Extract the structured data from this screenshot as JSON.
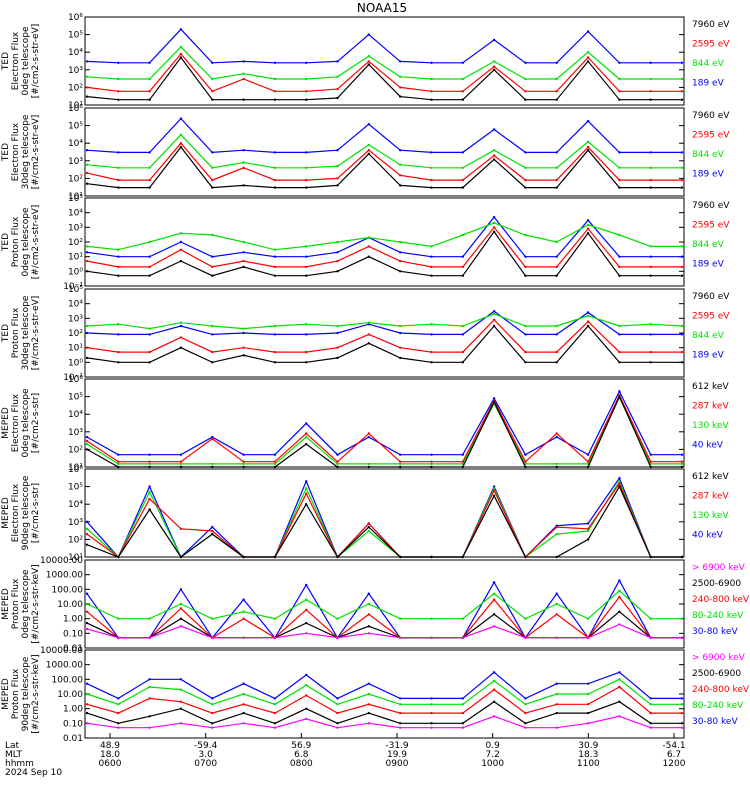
{
  "figure": {
    "title": "NOAA15",
    "date_label": "2024 Sep 10",
    "coord_rows": [
      {
        "label": "Lat",
        "values": [
          "48.9",
          "-59.4",
          "56.9",
          "-31.9",
          "0.9",
          "30.9",
          "-54.1"
        ]
      },
      {
        "label": "MLT",
        "values": [
          "18.0",
          "3.0",
          "6.8",
          "19.9",
          "7.2",
          "18.3",
          "6.7"
        ]
      },
      {
        "label": "hhmm",
        "values": [
          "0600",
          "0700",
          "0800",
          "0900",
          "1000",
          "1100",
          "1200"
        ]
      }
    ]
  },
  "colors": {
    "black": "#000000",
    "blue": "#0000ff",
    "red": "#ff0000",
    "green": "#00e000",
    "magenta": "#ff00ff"
  },
  "chart_data": [
    {
      "type": "line",
      "ylabel": "TED\nElectron Flux\n0deg telescope\n[#/cm2-s-str-eV]",
      "scale": "log",
      "ylim": [
        10,
        1000000
      ],
      "tick_labels": [
        "10¹",
        "10²",
        "10³",
        "10⁴",
        "10⁵",
        "10⁶"
      ],
      "series": [
        {
          "name": "7960 eV",
          "color": "black",
          "values": [
            30,
            20,
            20,
            5000,
            20,
            20,
            20,
            20,
            25,
            2000,
            30,
            20,
            20,
            1000,
            20,
            20,
            3000,
            20,
            20,
            20
          ]
        },
        {
          "name": "2595 eV",
          "color": "red",
          "values": [
            100,
            60,
            60,
            8000,
            60,
            300,
            60,
            60,
            80,
            3000,
            100,
            60,
            60,
            1500,
            60,
            60,
            5000,
            60,
            60,
            60
          ]
        },
        {
          "name": "844 eV",
          "color": "green",
          "values": [
            400,
            300,
            300,
            20000,
            300,
            600,
            300,
            300,
            400,
            6000,
            400,
            300,
            300,
            3000,
            300,
            300,
            10000,
            300,
            300,
            300
          ]
        },
        {
          "name": "189 eV",
          "color": "blue",
          "values": [
            3000,
            2500,
            2500,
            200000,
            2500,
            3000,
            2500,
            2500,
            3000,
            100000,
            3000,
            2500,
            2500,
            50000,
            2500,
            2500,
            150000,
            2500,
            2500,
            2500
          ]
        }
      ]
    },
    {
      "type": "line",
      "ylabel": "TED\nElectron Flux\n30deg telescope\n[#/cm2-s-str-eV]",
      "scale": "log",
      "ylim": [
        10,
        1000000
      ],
      "tick_labels": [
        "10¹",
        "10²",
        "10³",
        "10⁴",
        "10⁵",
        "10⁶"
      ],
      "series": [
        {
          "name": "7960 eV",
          "color": "black",
          "values": [
            50,
            30,
            30,
            6000,
            30,
            40,
            30,
            30,
            40,
            2500,
            40,
            30,
            30,
            1200,
            30,
            30,
            4000,
            30,
            30,
            30
          ]
        },
        {
          "name": "2595 eV",
          "color": "red",
          "values": [
            200,
            80,
            80,
            10000,
            80,
            400,
            80,
            80,
            100,
            4000,
            150,
            80,
            80,
            2000,
            80,
            80,
            6000,
            80,
            80,
            80
          ]
        },
        {
          "name": "844 eV",
          "color": "green",
          "values": [
            600,
            400,
            400,
            30000,
            400,
            800,
            400,
            400,
            500,
            8000,
            600,
            400,
            400,
            4000,
            400,
            400,
            12000,
            400,
            400,
            400
          ]
        },
        {
          "name": "189 eV",
          "color": "blue",
          "values": [
            4000,
            3000,
            3000,
            250000,
            3000,
            4000,
            3000,
            3000,
            4000,
            120000,
            4000,
            3000,
            3000,
            60000,
            3000,
            3000,
            180000,
            3000,
            3000,
            3000
          ]
        }
      ]
    },
    {
      "type": "line",
      "ylabel": "TED\nProton Flux\n0deg telescope\n[#/cm2-s-str-eV]",
      "scale": "log",
      "ylim": [
        0.1,
        100000
      ],
      "tick_labels": [
        "10⁻¹",
        "10⁰",
        "10¹",
        "10²",
        "10³",
        "10⁴",
        "10⁵"
      ],
      "series": [
        {
          "name": "7960 eV",
          "color": "black",
          "values": [
            1,
            0.5,
            0.5,
            5,
            0.5,
            2,
            0.5,
            0.5,
            1,
            10,
            1,
            0.5,
            0.5,
            500,
            0.5,
            0.5,
            400,
            0.5,
            0.5,
            0.5
          ]
        },
        {
          "name": "2595 eV",
          "color": "red",
          "values": [
            5,
            2,
            2,
            30,
            2,
            5,
            2,
            2,
            5,
            50,
            5,
            2,
            2,
            1000,
            2,
            2,
            800,
            2,
            2,
            2
          ]
        },
        {
          "name": "844 eV",
          "color": "green",
          "values": [
            50,
            30,
            100,
            400,
            300,
            100,
            30,
            50,
            100,
            200,
            100,
            50,
            300,
            2000,
            300,
            100,
            1500,
            300,
            50,
            50
          ]
        },
        {
          "name": "189 eV",
          "color": "blue",
          "values": [
            20,
            10,
            10,
            100,
            10,
            20,
            10,
            10,
            20,
            200,
            20,
            10,
            10,
            5000,
            10,
            10,
            3000,
            10,
            10,
            10
          ]
        }
      ]
    },
    {
      "type": "line",
      "ylabel": "TED\nProton Flux\n30deg telescope\n[#/cm2-s-str-eV]",
      "scale": "log",
      "ylim": [
        0.1,
        100000
      ],
      "tick_labels": [
        "10⁻¹",
        "10⁰",
        "10¹",
        "10²",
        "10³",
        "10⁴",
        "10⁵"
      ],
      "series": [
        {
          "name": "7960 eV",
          "color": "black",
          "values": [
            2,
            1,
            1,
            10,
            1,
            3,
            1,
            1,
            2,
            20,
            2,
            1,
            1,
            300,
            1,
            1,
            300,
            1,
            1,
            1
          ]
        },
        {
          "name": "2595 eV",
          "color": "red",
          "values": [
            10,
            5,
            5,
            50,
            5,
            10,
            5,
            5,
            10,
            80,
            10,
            5,
            5,
            800,
            5,
            5,
            600,
            5,
            5,
            5
          ]
        },
        {
          "name": "844 eV",
          "color": "green",
          "values": [
            300,
            400,
            200,
            500,
            300,
            200,
            300,
            400,
            300,
            500,
            300,
            400,
            300,
            2000,
            300,
            300,
            1500,
            300,
            400,
            300
          ]
        },
        {
          "name": "189 eV",
          "color": "blue",
          "values": [
            100,
            80,
            80,
            300,
            80,
            100,
            80,
            80,
            100,
            400,
            100,
            80,
            80,
            3000,
            80,
            80,
            2500,
            80,
            80,
            80
          ]
        }
      ]
    },
    {
      "type": "line",
      "ylabel": "MEPED\nElectron Flux\n0deg telescope\n[#/cm2-s-str]",
      "scale": "log",
      "ylim": [
        10,
        1000000
      ],
      "tick_labels": [
        "10¹",
        "10²",
        "10³",
        "10⁴",
        "10⁵",
        "10⁶"
      ],
      "series": [
        {
          "name": "612 keV",
          "color": "black",
          "values": [
            100,
            10,
            10,
            10,
            10,
            10,
            10,
            200,
            10,
            10,
            10,
            10,
            10,
            50000,
            10,
            10,
            10,
            100000,
            10,
            10
          ]
        },
        {
          "name": "287 keV",
          "color": "red",
          "values": [
            300,
            20,
            20,
            20,
            400,
            20,
            20,
            800,
            20,
            800,
            20,
            20,
            20,
            60000,
            20,
            800,
            20,
            120000,
            20,
            20
          ]
        },
        {
          "name": "130 keV",
          "color": "green",
          "values": [
            200,
            15,
            15,
            15,
            15,
            15,
            15,
            500,
            15,
            15,
            15,
            15,
            15,
            40000,
            15,
            15,
            15,
            90000,
            15,
            15
          ]
        },
        {
          "name": "40 keV",
          "color": "blue",
          "values": [
            500,
            50,
            50,
            50,
            500,
            50,
            50,
            3000,
            50,
            500,
            50,
            50,
            50,
            80000,
            50,
            500,
            50,
            200000,
            50,
            50
          ]
        }
      ]
    },
    {
      "type": "line",
      "ylabel": "MEPED\nElectron Flux\n90deg telescope\n[#/cm2-s-str]",
      "scale": "log",
      "ylim": [
        10,
        1000000
      ],
      "tick_labels": [
        "10¹",
        "10²",
        "10³",
        "10⁴",
        "10⁵",
        "10⁶"
      ],
      "series": [
        {
          "name": "612 keV",
          "color": "black",
          "values": [
            50,
            10,
            5000,
            10,
            200,
            10,
            10,
            10000,
            10,
            500,
            10,
            10,
            10,
            30000,
            10,
            10,
            100,
            100000,
            10,
            10
          ]
        },
        {
          "name": "287 keV",
          "color": "red",
          "values": [
            200,
            10,
            20000,
            400,
            300,
            10,
            10,
            40000,
            10,
            800,
            10,
            10,
            10,
            60000,
            10,
            500,
            400,
            150000,
            10,
            10
          ]
        },
        {
          "name": "130 keV",
          "color": "green",
          "values": [
            400,
            10,
            50000,
            10,
            200,
            10,
            10,
            80000,
            10,
            300,
            10,
            10,
            10,
            80000,
            10,
            200,
            300,
            200000,
            10,
            10
          ]
        },
        {
          "name": "40 keV",
          "color": "blue",
          "values": [
            1000,
            10,
            100000,
            10,
            500,
            10,
            10,
            200000,
            10,
            800,
            10,
            10,
            10,
            100000,
            10,
            600,
            800,
            300000,
            10,
            10
          ]
        }
      ]
    },
    {
      "type": "line",
      "ylabel": "MEPED\nProton Flux\n0deg telescope\n[#/cm2-s-str-keV]",
      "scale": "log",
      "ylim": [
        0.01,
        10000
      ],
      "tick_labels": [
        "0.01",
        "0.10",
        "1.00",
        "10.00",
        "100.00",
        "1000.00",
        "10000.00"
      ],
      "series": [
        {
          "name": "> 6900 keV",
          "color": "magenta",
          "values": [
            0.2,
            0.05,
            0.05,
            0.3,
            0.05,
            0.05,
            0.05,
            0.1,
            0.05,
            0.1,
            0.05,
            0.05,
            0.05,
            0.3,
            0.05,
            0.05,
            0.05,
            0.4,
            0.05,
            0.05
          ]
        },
        {
          "name": "2500-6900",
          "color": "black",
          "values": [
            0.5,
            0.05,
            0.05,
            1,
            0.05,
            0.05,
            0.05,
            0.5,
            0.05,
            0.3,
            0.05,
            0.05,
            0.05,
            2,
            0.05,
            0.05,
            0.05,
            3,
            0.05,
            0.05
          ]
        },
        {
          "name": "240-800 keV",
          "color": "red",
          "values": [
            3,
            0.05,
            0.05,
            5,
            0.05,
            1,
            0.05,
            4,
            0.05,
            2,
            0.05,
            0.05,
            0.05,
            20,
            0.05,
            2,
            0.05,
            30,
            0.05,
            0.05
          ]
        },
        {
          "name": "80-240 keV",
          "color": "green",
          "values": [
            10,
            1,
            1,
            10,
            1,
            3,
            1,
            20,
            1,
            10,
            1,
            1,
            1,
            50,
            1,
            10,
            1,
            80,
            1,
            1
          ]
        },
        {
          "name": "30-80 keV",
          "color": "blue",
          "values": [
            50,
            0.05,
            0.05,
            100,
            0.05,
            20,
            0.05,
            200,
            0.05,
            50,
            0.05,
            0.05,
            0.05,
            300,
            0.05,
            50,
            0.05,
            400,
            0.05,
            0.05
          ]
        }
      ]
    },
    {
      "type": "line",
      "ylabel": "MEPED\nProton Flux\n90deg telescope\n[#/cm2-s-str-keV]",
      "scale": "log",
      "ylim": [
        0.01,
        10000
      ],
      "tick_labels": [
        "0.01",
        "0.10",
        "1.00",
        "10.00",
        "100.00",
        "1000.00",
        "10000.00"
      ],
      "series": [
        {
          "name": "> 6900 keV",
          "color": "magenta",
          "values": [
            0.1,
            0.05,
            0.05,
            0.1,
            0.05,
            0.1,
            0.05,
            0.2,
            0.05,
            0.1,
            0.05,
            0.05,
            0.05,
            0.3,
            0.05,
            0.05,
            0.1,
            0.3,
            0.05,
            0.05
          ]
        },
        {
          "name": "2500-6900",
          "color": "black",
          "values": [
            0.5,
            0.1,
            0.3,
            1,
            0.1,
            0.5,
            0.1,
            1,
            0.1,
            0.5,
            0.1,
            0.1,
            0.1,
            3,
            0.1,
            0.5,
            0.5,
            3,
            0.1,
            0.1
          ]
        },
        {
          "name": "240-800 keV",
          "color": "red",
          "values": [
            2,
            0.5,
            5,
            3,
            0.5,
            2,
            0.5,
            8,
            0.5,
            2,
            0.5,
            0.5,
            0.5,
            20,
            0.5,
            2,
            2,
            30,
            0.5,
            0.5
          ]
        },
        {
          "name": "80-240 keV",
          "color": "green",
          "values": [
            10,
            2,
            30,
            20,
            2,
            10,
            2,
            40,
            2,
            10,
            2,
            2,
            2,
            80,
            2,
            10,
            10,
            100,
            2,
            2
          ]
        },
        {
          "name": "30-80 keV",
          "color": "blue",
          "values": [
            50,
            5,
            100,
            100,
            5,
            50,
            5,
            200,
            5,
            50,
            5,
            5,
            5,
            300,
            5,
            50,
            50,
            300,
            5,
            5
          ]
        }
      ]
    }
  ]
}
